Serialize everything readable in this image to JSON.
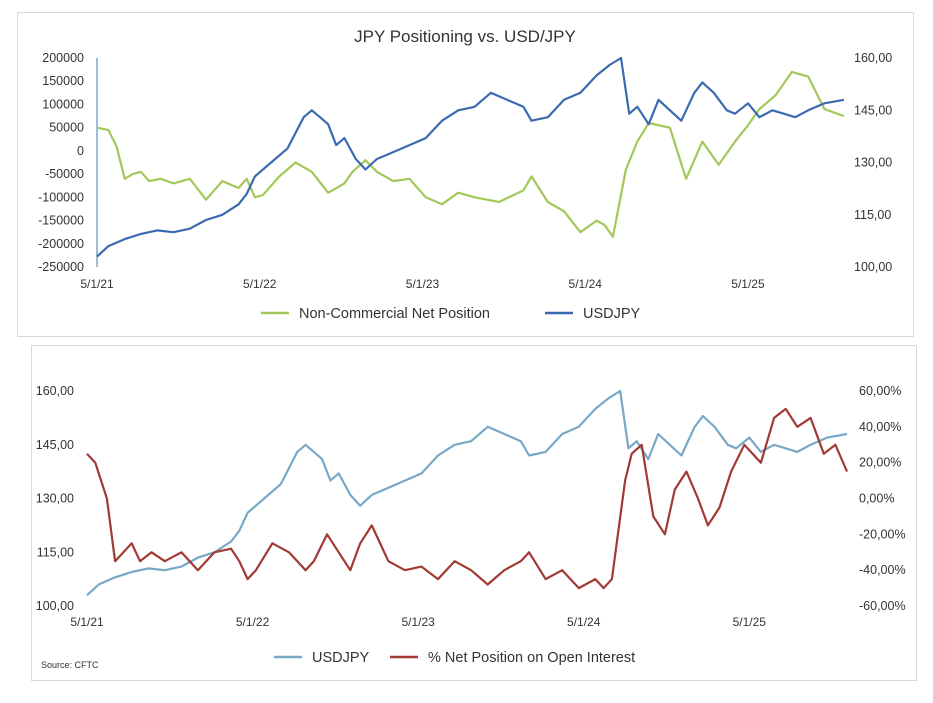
{
  "colors": {
    "green": "#a3c85a",
    "blue": "#3a6aaf",
    "lightblue": "#78a8c8",
    "red": "#a03a33"
  },
  "top": {
    "title": "JPY Positioning vs. USD/JPY",
    "legend": [
      "Non-Commercial Net Position",
      "USDJPY"
    ],
    "y_left_ticks": [
      "200000",
      "150000",
      "100000",
      "50000",
      "0",
      "-50000",
      "-100000",
      "-150000",
      "-200000",
      "-250000"
    ],
    "y_right_ticks": [
      "160,00",
      "145,00",
      "130,00",
      "115,00",
      "100,00"
    ],
    "x_ticks": [
      "5/1/21",
      "5/1/22",
      "5/1/23",
      "5/1/24",
      "5/1/25"
    ]
  },
  "bottom": {
    "legend": [
      "USDJPY",
      "% Net Position on Open Interest"
    ],
    "y_left_ticks": [
      "160,00",
      "145,00",
      "130,00",
      "115,00",
      "100,00"
    ],
    "y_right_ticks": [
      "60,00%",
      "40,00%",
      "20,00%",
      "0,00%",
      "-20,00%",
      "-40,00%",
      "-60,00%"
    ],
    "x_ticks": [
      "5/1/21",
      "5/1/22",
      "5/1/23",
      "5/1/24",
      "5/1/25"
    ],
    "source": "Source: CFTC"
  },
  "chart_data": [
    {
      "type": "line",
      "title": "JPY Positioning vs. USD/JPY",
      "x_label_ticks": [
        "5/1/21",
        "5/1/22",
        "5/1/23",
        "5/1/24",
        "5/1/25"
      ],
      "x_range": [
        2021.33,
        2025.92
      ],
      "y_left_range": [
        -250000,
        200000
      ],
      "y_right_range": [
        100,
        160
      ],
      "series": [
        {
          "name": "Non-Commercial Net Position",
          "axis": "left",
          "x": [
            2021.33,
            2021.4,
            2021.45,
            2021.5,
            2021.55,
            2021.6,
            2021.65,
            2021.72,
            2021.8,
            2021.9,
            2022.0,
            2022.1,
            2022.2,
            2022.25,
            2022.3,
            2022.35,
            2022.45,
            2022.55,
            2022.65,
            2022.75,
            2022.85,
            2022.9,
            2022.98,
            2023.05,
            2023.15,
            2023.25,
            2023.35,
            2023.45,
            2023.55,
            2023.65,
            2023.8,
            2023.95,
            2024.0,
            2024.1,
            2024.2,
            2024.3,
            2024.4,
            2024.45,
            2024.5,
            2024.58,
            2024.65,
            2024.72,
            2024.85,
            2024.95,
            2025.05,
            2025.15,
            2025.25,
            2025.33,
            2025.4,
            2025.5,
            2025.6,
            2025.7,
            2025.8,
            2025.92
          ],
          "y": [
            50000,
            45000,
            10000,
            -60000,
            -50000,
            -45000,
            -65000,
            -60000,
            -70000,
            -60000,
            -105000,
            -65000,
            -80000,
            -60000,
            -100000,
            -95000,
            -55000,
            -25000,
            -45000,
            -90000,
            -70000,
            -45000,
            -20000,
            -45000,
            -65000,
            -60000,
            -100000,
            -115000,
            -90000,
            -100000,
            -110000,
            -85000,
            -55000,
            -110000,
            -130000,
            -175000,
            -150000,
            -160000,
            -185000,
            -40000,
            20000,
            60000,
            50000,
            -60000,
            20000,
            -30000,
            20000,
            55000,
            90000,
            120000,
            170000,
            160000,
            90000,
            75000
          ]
        },
        {
          "name": "USDJPY",
          "axis": "right",
          "x": [
            2021.33,
            2021.4,
            2021.5,
            2021.6,
            2021.7,
            2021.8,
            2021.9,
            2022.0,
            2022.1,
            2022.2,
            2022.25,
            2022.3,
            2022.4,
            2022.5,
            2022.6,
            2022.65,
            2022.7,
            2022.75,
            2022.8,
            2022.85,
            2022.92,
            2022.98,
            2023.05,
            2023.15,
            2023.25,
            2023.35,
            2023.45,
            2023.55,
            2023.65,
            2023.75,
            2023.85,
            2023.95,
            2024.0,
            2024.1,
            2024.2,
            2024.3,
            2024.4,
            2024.48,
            2024.55,
            2024.6,
            2024.65,
            2024.72,
            2024.78,
            2024.85,
            2024.92,
            2025.0,
            2025.05,
            2025.12,
            2025.2,
            2025.25,
            2025.33,
            2025.4,
            2025.48,
            2025.55,
            2025.62,
            2025.7,
            2025.8,
            2025.92
          ],
          "y": [
            103,
            106,
            108,
            109.5,
            110.5,
            110,
            111,
            113.5,
            115,
            118,
            121,
            126,
            130,
            134,
            143,
            145,
            143,
            141,
            135,
            137,
            131,
            128,
            131,
            133,
            135,
            137,
            142,
            145,
            146,
            150,
            148,
            146,
            142,
            143,
            148,
            150,
            155,
            158,
            160,
            144,
            146,
            141,
            148,
            145,
            142,
            150,
            153,
            150,
            145,
            144,
            147,
            143,
            145,
            144,
            143,
            145,
            147,
            148
          ]
        }
      ]
    },
    {
      "type": "line",
      "x_label_ticks": [
        "5/1/21",
        "5/1/22",
        "5/1/23",
        "5/1/24",
        "5/1/25"
      ],
      "x_range": [
        2021.33,
        2025.92
      ],
      "y_left_range": [
        100,
        160
      ],
      "y_right_range": [
        -60,
        60
      ],
      "series": [
        {
          "name": "USDJPY",
          "axis": "left",
          "x": [
            2021.33,
            2021.4,
            2021.5,
            2021.6,
            2021.7,
            2021.8,
            2021.9,
            2022.0,
            2022.1,
            2022.2,
            2022.25,
            2022.3,
            2022.4,
            2022.5,
            2022.6,
            2022.65,
            2022.7,
            2022.75,
            2022.8,
            2022.85,
            2022.92,
            2022.98,
            2023.05,
            2023.15,
            2023.25,
            2023.35,
            2023.45,
            2023.55,
            2023.65,
            2023.75,
            2023.85,
            2023.95,
            2024.0,
            2024.1,
            2024.2,
            2024.3,
            2024.4,
            2024.48,
            2024.55,
            2024.6,
            2024.65,
            2024.72,
            2024.78,
            2024.85,
            2024.92,
            2025.0,
            2025.05,
            2025.12,
            2025.2,
            2025.25,
            2025.33,
            2025.4,
            2025.48,
            2025.55,
            2025.62,
            2025.7,
            2025.8,
            2025.92
          ],
          "y": [
            103,
            106,
            108,
            109.5,
            110.5,
            110,
            111,
            113.5,
            115,
            118,
            121,
            126,
            130,
            134,
            143,
            145,
            143,
            141,
            135,
            137,
            131,
            128,
            131,
            133,
            135,
            137,
            142,
            145,
            146,
            150,
            148,
            146,
            142,
            143,
            148,
            150,
            155,
            158,
            160,
            144,
            146,
            141,
            148,
            145,
            142,
            150,
            153,
            150,
            145,
            144,
            147,
            143,
            145,
            144,
            143,
            145,
            147,
            148
          ]
        },
        {
          "name": "% Net Position on Open Interest",
          "axis": "right",
          "x": [
            2021.33,
            2021.38,
            2021.45,
            2021.5,
            2021.55,
            2021.6,
            2021.65,
            2021.72,
            2021.8,
            2021.9,
            2022.0,
            2022.1,
            2022.2,
            2022.25,
            2022.3,
            2022.35,
            2022.45,
            2022.55,
            2022.65,
            2022.7,
            2022.78,
            2022.85,
            2022.92,
            2022.98,
            2023.05,
            2023.15,
            2023.25,
            2023.35,
            2023.45,
            2023.55,
            2023.65,
            2023.75,
            2023.85,
            2023.95,
            2024.0,
            2024.1,
            2024.2,
            2024.3,
            2024.4,
            2024.45,
            2024.5,
            2024.58,
            2024.62,
            2024.68,
            2024.75,
            2024.82,
            2024.88,
            2024.95,
            2025.02,
            2025.08,
            2025.15,
            2025.22,
            2025.3,
            2025.35,
            2025.4,
            2025.48,
            2025.55,
            2025.62,
            2025.7,
            2025.78,
            2025.85,
            2025.92
          ],
          "y": [
            25,
            20,
            0,
            -35,
            -30,
            -25,
            -35,
            -30,
            -35,
            -30,
            -40,
            -30,
            -28,
            -35,
            -45,
            -40,
            -25,
            -30,
            -40,
            -35,
            -20,
            -30,
            -40,
            -25,
            -15,
            -35,
            -40,
            -38,
            -45,
            -35,
            -40,
            -48,
            -40,
            -35,
            -30,
            -45,
            -40,
            -50,
            -45,
            -50,
            -45,
            10,
            25,
            30,
            -10,
            -20,
            5,
            15,
            0,
            -15,
            -5,
            15,
            30,
            25,
            20,
            45,
            50,
            40,
            45,
            25,
            30,
            15
          ]
        }
      ]
    }
  ]
}
